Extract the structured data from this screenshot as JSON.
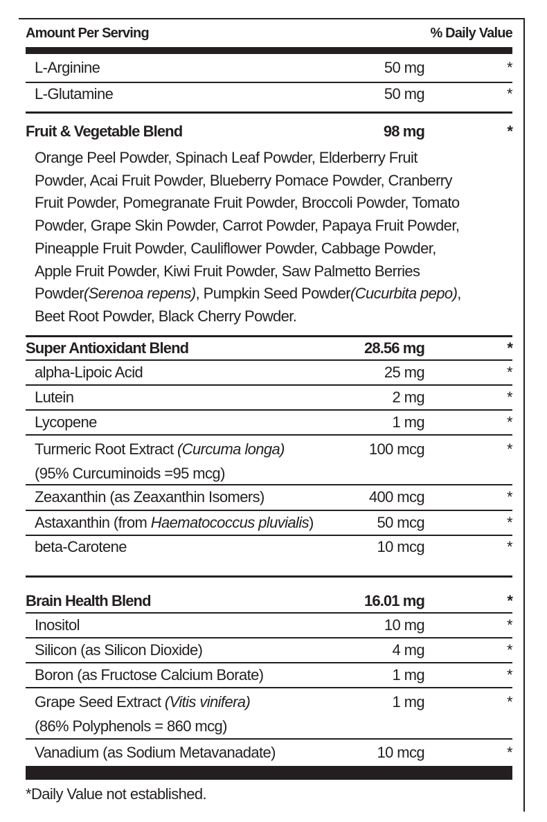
{
  "header": {
    "amount_per_serving": "Amount Per Serving",
    "daily_value": "% Daily Value"
  },
  "top_items": [
    {
      "name": "L-Arginine",
      "amount": "50 mg",
      "dv": "*"
    },
    {
      "name": "L-Glutamine",
      "amount": "50 mg",
      "dv": "*"
    }
  ],
  "fruit_blend": {
    "name": "Fruit & Vegetable Blend",
    "amount": "98 mg",
    "dv": "*",
    "lines": [
      "Orange Peel Powder, Spinach Leaf Powder, Elderberry Fruit",
      "Powder, Acai Fruit Powder, Blueberry Pomace Powder, Cranberry",
      "Fruit Powder, Pomegranate Fruit Powder, Broccoli Powder, Tomato",
      "Powder, Grape Skin Powder, Carrot Powder, Papaya Fruit Powder,",
      "Pineapple Fruit Powder, Cauliflower Powder, Cabbage Powder,",
      "Apple Fruit Powder, Kiwi Fruit Powder, Saw Palmetto Berries"
    ],
    "line7": {
      "a": "Powder",
      "b": "(Serenoa repens)",
      "c": ", Pumpkin Seed Powder",
      "d": "(Cucurbita pepo)",
      "e": ","
    },
    "line8": "Beet Root Powder, Black Cherry Powder."
  },
  "antioxidant_blend": {
    "name": "Super Antioxidant Blend",
    "amount": "28.56 mg",
    "dv": "*",
    "items": [
      {
        "name": "alpha-Lipoic Acid",
        "amount": "25 mg",
        "dv": "*"
      },
      {
        "name": "Lutein",
        "amount": "2 mg",
        "dv": "*"
      },
      {
        "name": "Lycopene",
        "amount": "1 mg",
        "dv": "*"
      }
    ],
    "turmeric": {
      "name": "Turmeric Root Extract ",
      "latin": "(Curcuma longa)",
      "sub": "(95% Curcuminoids =95 mcg)",
      "amount": "100 mcg",
      "dv": "*"
    },
    "zeaxanthin": {
      "name": "Zeaxanthin (as Zeaxanthin Isomers)",
      "amount": "400 mcg",
      "dv": "*"
    },
    "astaxanthin": {
      "name": "Astaxanthin (from ",
      "latin": "Haematococcus pluvialis",
      "close": ")",
      "amount": "50 mcg",
      "dv": "*"
    },
    "beta": {
      "name": "beta-Carotene",
      "amount": "10 mcg",
      "dv": "*"
    }
  },
  "brain_blend": {
    "name": "Brain Health Blend",
    "amount": "16.01 mg",
    "dv": "*",
    "items": [
      {
        "name": "Inositol",
        "amount": "10 mg",
        "dv": "*"
      },
      {
        "name": "Silicon (as Silicon Dioxide)",
        "amount": "4 mg",
        "dv": "*"
      },
      {
        "name": "Boron (as Fructose Calcium Borate)",
        "amount": "1 mg",
        "dv": "*"
      }
    ],
    "grape": {
      "name": "Grape Seed Extract ",
      "latin": "(Vitis vinifera)",
      "sub": "(86% Polyphenols = 860 mcg)",
      "amount": "1 mg",
      "dv": "*"
    },
    "vanadium": {
      "name": "Vanadium (as Sodium Metavanadate)",
      "amount": "10 mcg",
      "dv": "*"
    }
  },
  "footnote": "*Daily Value not established."
}
